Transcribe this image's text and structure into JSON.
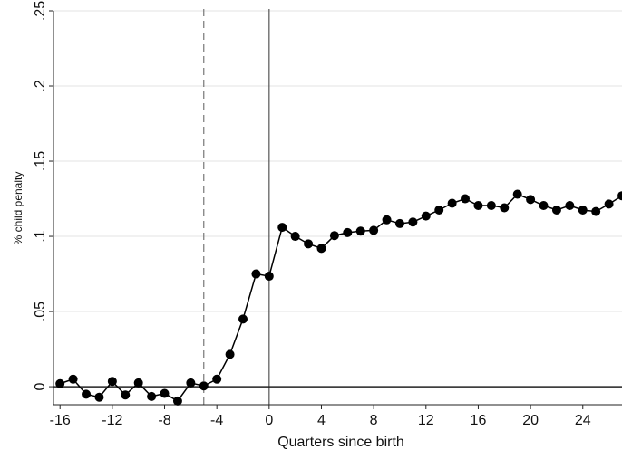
{
  "chart_data": {
    "type": "line",
    "title": "",
    "xlabel": "Quarters since birth",
    "ylabel": "% child penalty",
    "xlim": [
      -16.5,
      27
    ],
    "ylim": [
      -0.012,
      0.25
    ],
    "x_ticks": [
      -16,
      -12,
      -8,
      -4,
      0,
      4,
      8,
      12,
      16,
      20,
      24
    ],
    "x_tick_labels": [
      "-16",
      "-12",
      "-8",
      "-4",
      "0",
      "4",
      "8",
      "12",
      "16",
      "20",
      "24"
    ],
    "y_ticks": [
      0,
      0.05,
      0.1,
      0.15,
      0.2,
      0.25
    ],
    "y_tick_labels": [
      "0",
      ".05",
      ".1",
      ".15",
      ".2",
      ".25"
    ],
    "grid": "horizontal",
    "reference_lines": [
      {
        "axis": "x",
        "value": -5,
        "style": "dashed",
        "color": "#777777"
      },
      {
        "axis": "x",
        "value": 0,
        "style": "solid",
        "color": "#555555"
      },
      {
        "axis": "y",
        "value": 0,
        "style": "solid",
        "color": "#222222"
      }
    ],
    "series": [
      {
        "color": "#000000",
        "marker": "circle",
        "x": [
          -16,
          -15,
          -14,
          -13,
          -12,
          -11,
          -10,
          -9,
          -8,
          -7,
          -6,
          -5,
          -4,
          -3,
          -2,
          -1,
          0,
          1,
          2,
          3,
          4,
          5,
          6,
          7,
          8,
          9,
          10,
          11,
          12,
          13,
          14,
          15,
          16,
          17,
          18,
          19,
          20,
          21,
          22,
          23,
          24,
          25,
          26,
          27
        ],
        "y": [
          0.002,
          0.005,
          -0.005,
          -0.007,
          0.0035,
          -0.0055,
          0.0025,
          -0.0065,
          -0.0045,
          -0.0095,
          0.0025,
          0.0005,
          0.005,
          0.0215,
          0.045,
          0.075,
          0.0735,
          0.106,
          0.1,
          0.095,
          0.092,
          0.1005,
          0.1025,
          0.1035,
          0.104,
          0.111,
          0.1085,
          0.1095,
          0.1135,
          0.1175,
          0.122,
          0.125,
          0.1205,
          0.1205,
          0.119,
          0.128,
          0.1245,
          0.1205,
          0.1175,
          0.1205,
          0.1175,
          0.1165,
          0.1215,
          0.127
        ]
      }
    ]
  }
}
